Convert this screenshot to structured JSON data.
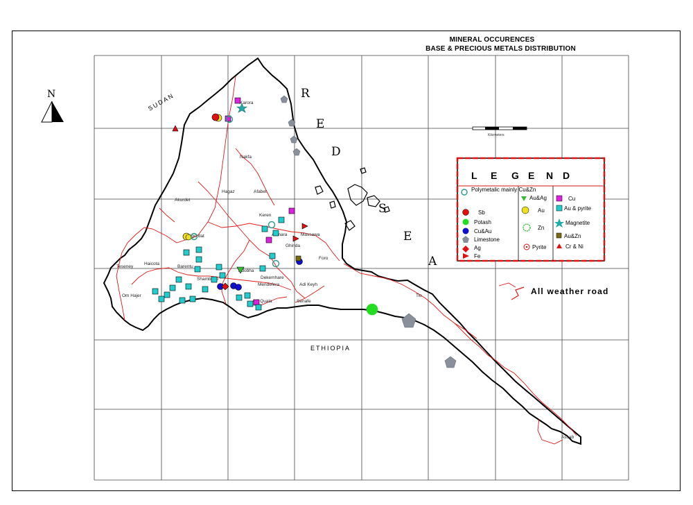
{
  "title": {
    "line1": "MINERAL OCCURENCES",
    "line2": "BASE & PRECIOUS METALS DISTRIBUTION"
  },
  "north_arrow": {
    "label": "N"
  },
  "scale_bar": {
    "label": "Kilometers"
  },
  "sea": {
    "letters": [
      "R",
      "E",
      "D",
      "S",
      "E",
      "A"
    ]
  },
  "countries": {
    "north": "SUDAN",
    "south": "ETHIOPIA"
  },
  "road_label": "All weather road",
  "legend": {
    "title_letters": [
      "L",
      "E",
      "G",
      "E",
      "N",
      "D"
    ],
    "items": [
      {
        "label": "Polymetalic mainly Cu&Zn",
        "symbol": "polymetallic-ring",
        "color": "#2a9a8a"
      },
      {
        "label": "Sb",
        "symbol": "circle",
        "color": "#e01010"
      },
      {
        "label": "Potash",
        "symbol": "circle",
        "color": "#22dd22"
      },
      {
        "label": "Cu&Au",
        "symbol": "circle",
        "color": "#1010cc"
      },
      {
        "label": "Limestone",
        "symbol": "pentagon",
        "color": "#8a8f9c"
      },
      {
        "label": "Ag",
        "symbol": "diamond",
        "color": "#e01010"
      },
      {
        "label": "Fe",
        "symbol": "triangle-right",
        "color": "#e01010"
      },
      {
        "label": "Au&Ag",
        "symbol": "triangle-down",
        "color": "#33bb33"
      },
      {
        "label": "Au",
        "symbol": "circle",
        "color": "#f0e020"
      },
      {
        "label": "Zn",
        "symbol": "zn-ring",
        "color": "#33bb33"
      },
      {
        "label": "Pyrite",
        "symbol": "target",
        "color": "#e01010"
      },
      {
        "label": "Cu",
        "symbol": "square",
        "color": "#dd22dd"
      },
      {
        "label": "Au & pyrite",
        "symbol": "square",
        "color": "#22cccc"
      },
      {
        "label": "Magnetite",
        "symbol": "star",
        "color": "#22aaaa"
      },
      {
        "label": "Au&Zn",
        "symbol": "square",
        "color": "#7a6a10"
      },
      {
        "label": "Cr & Ni",
        "symbol": "triangle-up",
        "color": "#e01010"
      }
    ]
  },
  "places": [
    "Karora",
    "Nakfa",
    "Afabet",
    "Keren",
    "Asmara",
    "Massawa",
    "Teseney",
    "Barentu",
    "Agordat",
    "Mendefera",
    "Adi Keyh",
    "Senafe",
    "Ghinda",
    "Adi Quala",
    "Tio",
    "Assab",
    "Om Hajer",
    "Haicota",
    "Akurdet",
    "Dekemhare",
    "Foro",
    "Adobha",
    "Hagaz",
    "Shambuko"
  ],
  "map_data": {
    "occurrences": [
      {
        "type": "Cu",
        "count": 4
      },
      {
        "type": "Au & pyrite",
        "count": 24
      },
      {
        "type": "Au",
        "count": 3
      },
      {
        "type": "Cu&Au",
        "count": 4
      },
      {
        "type": "Ag",
        "count": 1
      },
      {
        "type": "Limestone",
        "count": 6
      },
      {
        "type": "Potash",
        "count": 1
      },
      {
        "type": "Cr & Ni",
        "count": 1
      },
      {
        "type": "Fe",
        "count": 2
      },
      {
        "type": "Polymetalic mainly Cu&Zn",
        "count": 4
      },
      {
        "type": "Au&Ag",
        "count": 1
      },
      {
        "type": "Magnetite",
        "count": 1
      },
      {
        "type": "Au&Zn",
        "count": 1
      },
      {
        "type": "Sb",
        "count": 1
      }
    ]
  }
}
